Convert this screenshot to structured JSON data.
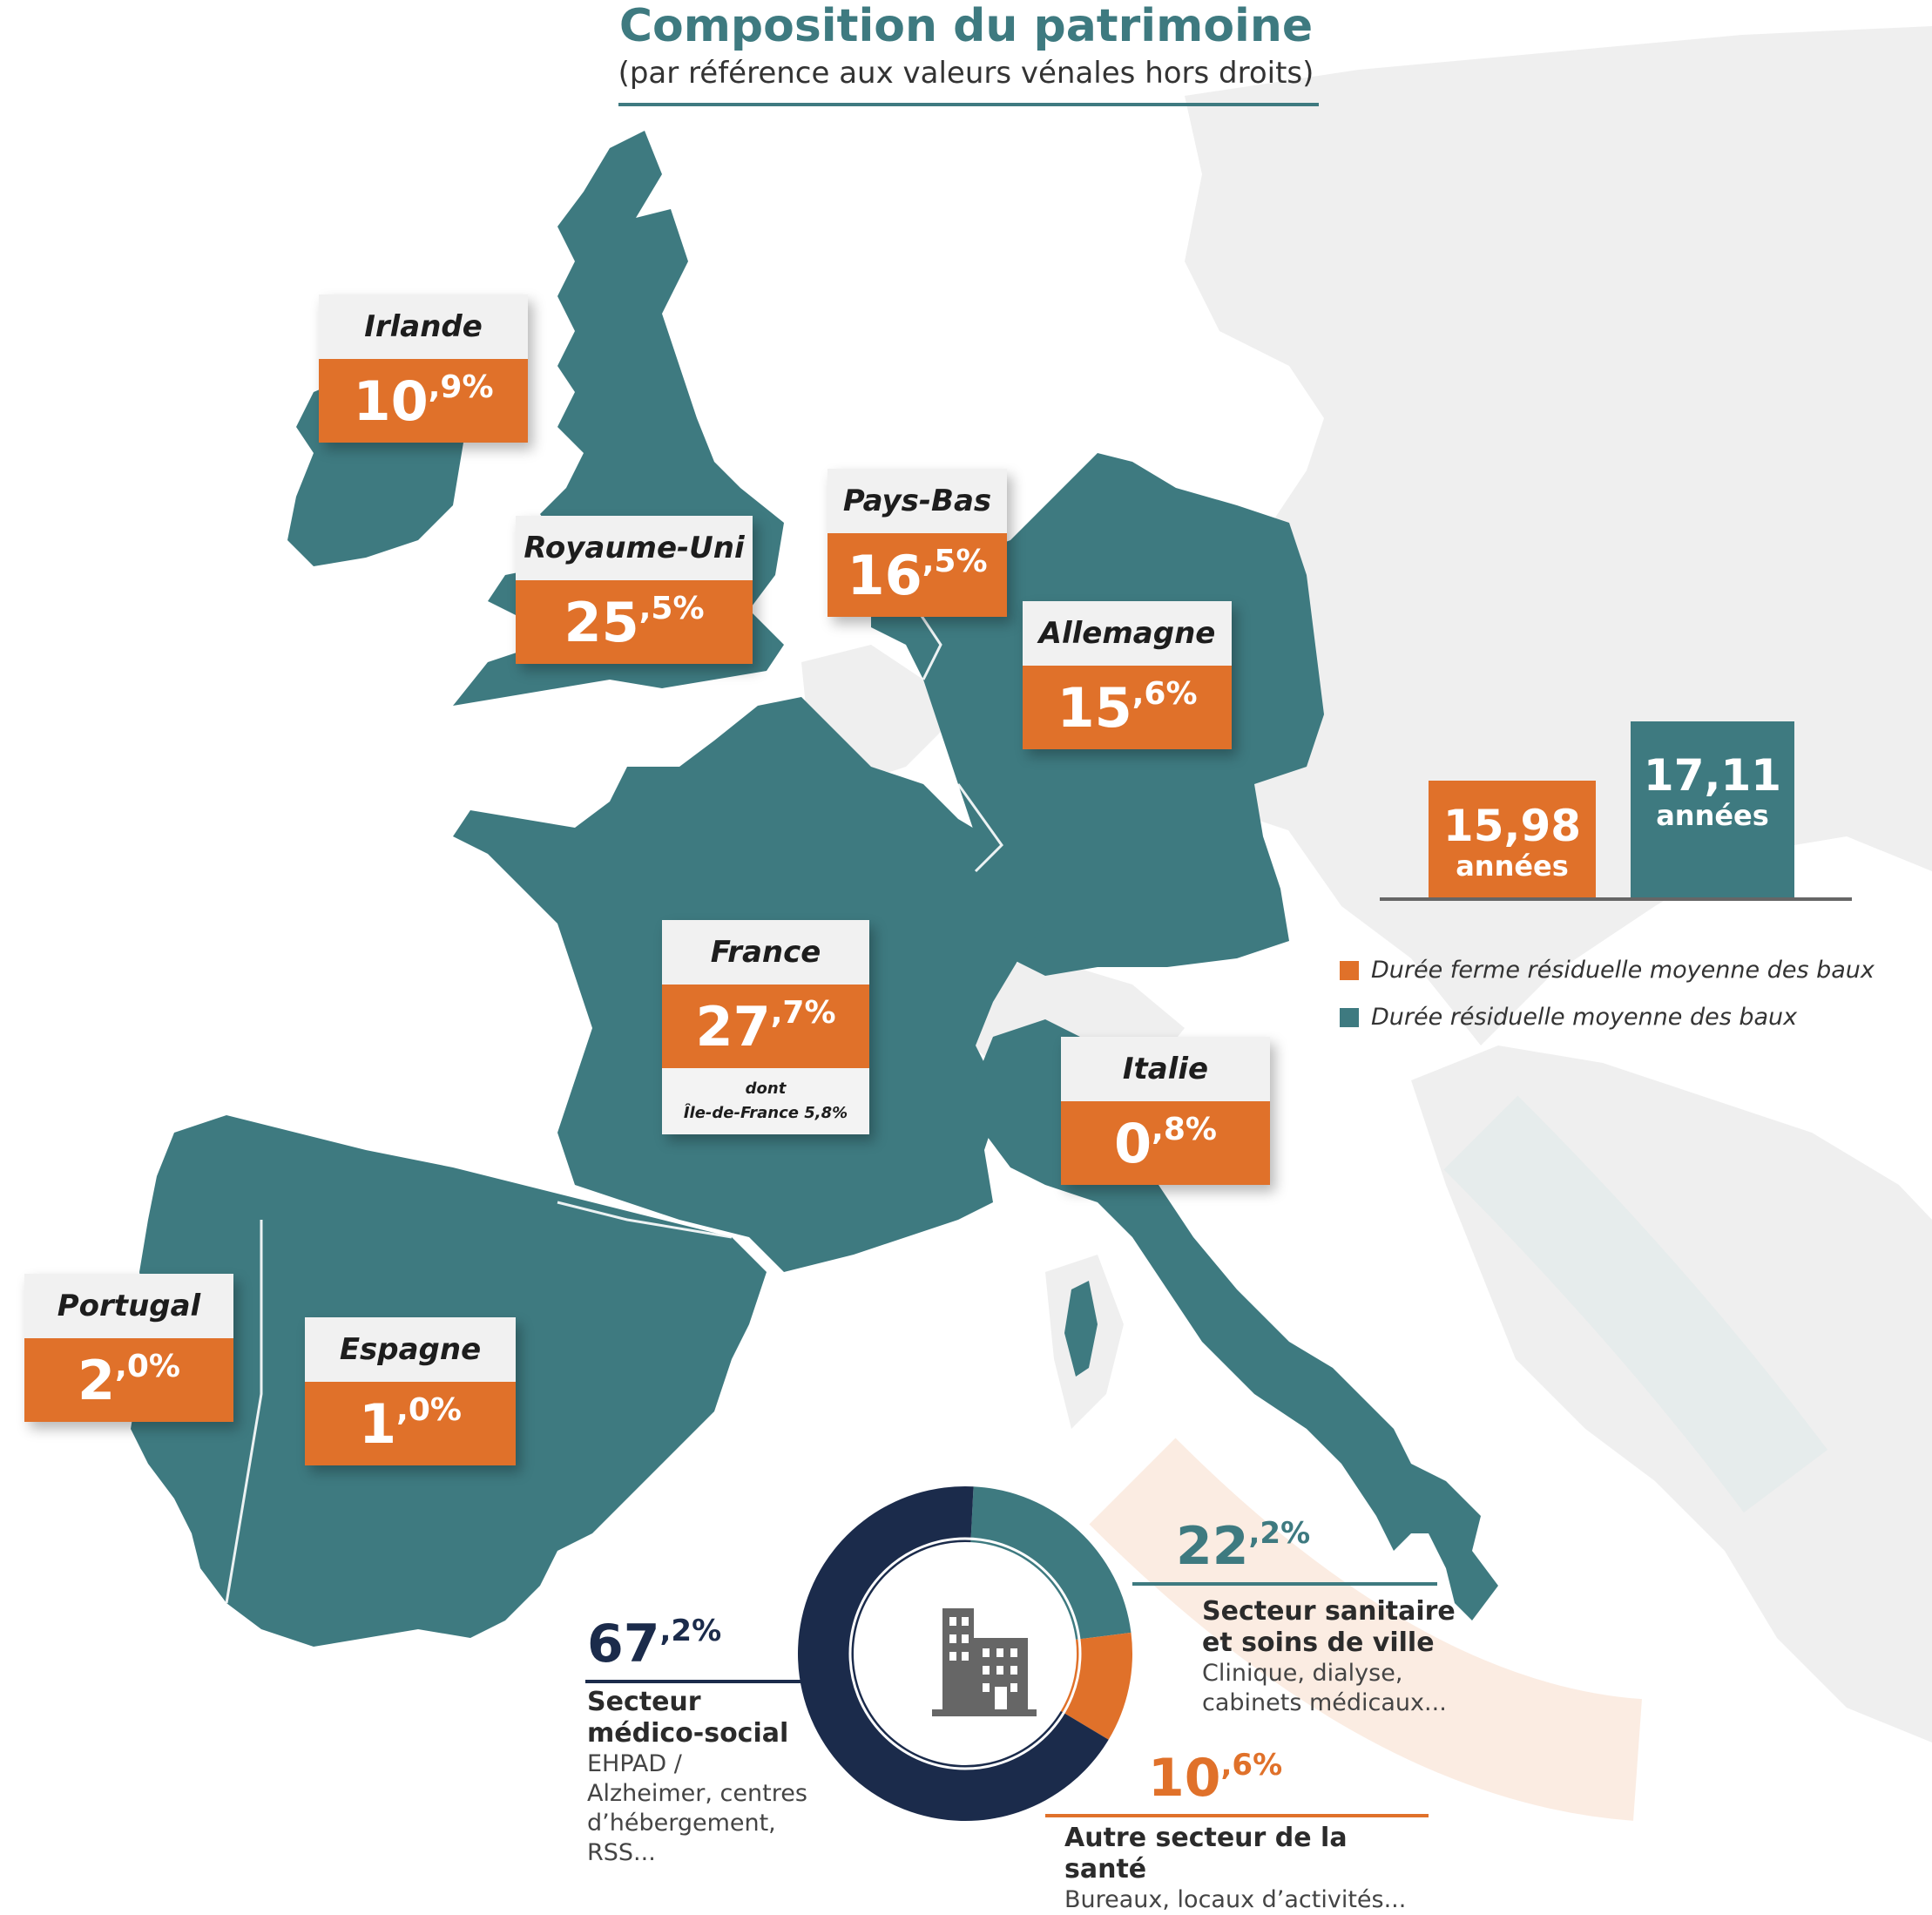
{
  "header": {
    "title": "Composition du patrimoine",
    "subtitle": "(par référence aux valeurs vénales hors droits)"
  },
  "countries": [
    {
      "id": "irlande",
      "name": "Irlande",
      "int": "10",
      "dec": ",9%"
    },
    {
      "id": "royaume-uni",
      "name": "Royaume-Uni",
      "int": "25",
      "dec": ",5%"
    },
    {
      "id": "pays-bas",
      "name": "Pays-Bas",
      "int": "16",
      "dec": ",5%"
    },
    {
      "id": "allemagne",
      "name": "Allemagne",
      "int": "15",
      "dec": ",6%"
    },
    {
      "id": "france",
      "name": "France",
      "int": "27",
      "dec": ",7%",
      "note_line1": "dont",
      "note_line2": "Île-de-France 5,8%"
    },
    {
      "id": "italie",
      "name": "Italie",
      "int": "0",
      "dec": ",8%"
    },
    {
      "id": "portugal",
      "name": "Portugal",
      "int": "2",
      "dec": ",0%"
    },
    {
      "id": "espagne",
      "name": "Espagne",
      "int": "1",
      "dec": ",0%"
    }
  ],
  "durations": {
    "firm": {
      "value": "15,98",
      "unit": "années",
      "color": "#e0712a"
    },
    "total": {
      "value": "17,11",
      "unit": "années",
      "color": "#3e7a80"
    }
  },
  "legend": [
    {
      "label": "Durée ferme résiduelle moyenne des baux",
      "color": "#e0712a"
    },
    {
      "label": "Durée résiduelle moyenne des baux",
      "color": "#3e7a80"
    }
  ],
  "colors": {
    "teal": "#3e7a80",
    "orange": "#e0712a",
    "navy": "#1b2b4b",
    "land": "#efefef"
  },
  "chart_data": {
    "type": "pie",
    "categories": [
      "Secteur médico-social",
      "Secteur sanitaire et soins de ville",
      "Autre secteur de la santé"
    ],
    "values": [
      67.2,
      22.2,
      10.6
    ],
    "colors": [
      "#1b2b4b",
      "#3e7a80",
      "#e0712a"
    ],
    "center_icon": "building-icon"
  },
  "segments": {
    "medico": {
      "int": "67",
      "dec": ",2%",
      "label_line1": "Secteur",
      "label_line2": "médico-social",
      "desc_lines": [
        "EHPAD /",
        "Alzheimer, centres",
        "d’hébergement,",
        "RSS..."
      ]
    },
    "sanitaire": {
      "int": "22",
      "dec": ",2%",
      "label_line1": "Secteur sanitaire",
      "label_line2": "et soins de ville",
      "desc_lines": [
        "Clinique, dialyse,",
        "cabinets médicaux..."
      ]
    },
    "autre": {
      "int": "10",
      "dec": ",6%",
      "label_line1": "Autre secteur de la santé",
      "desc_lines": [
        "Bureaux, locaux d’activités..."
      ]
    }
  }
}
